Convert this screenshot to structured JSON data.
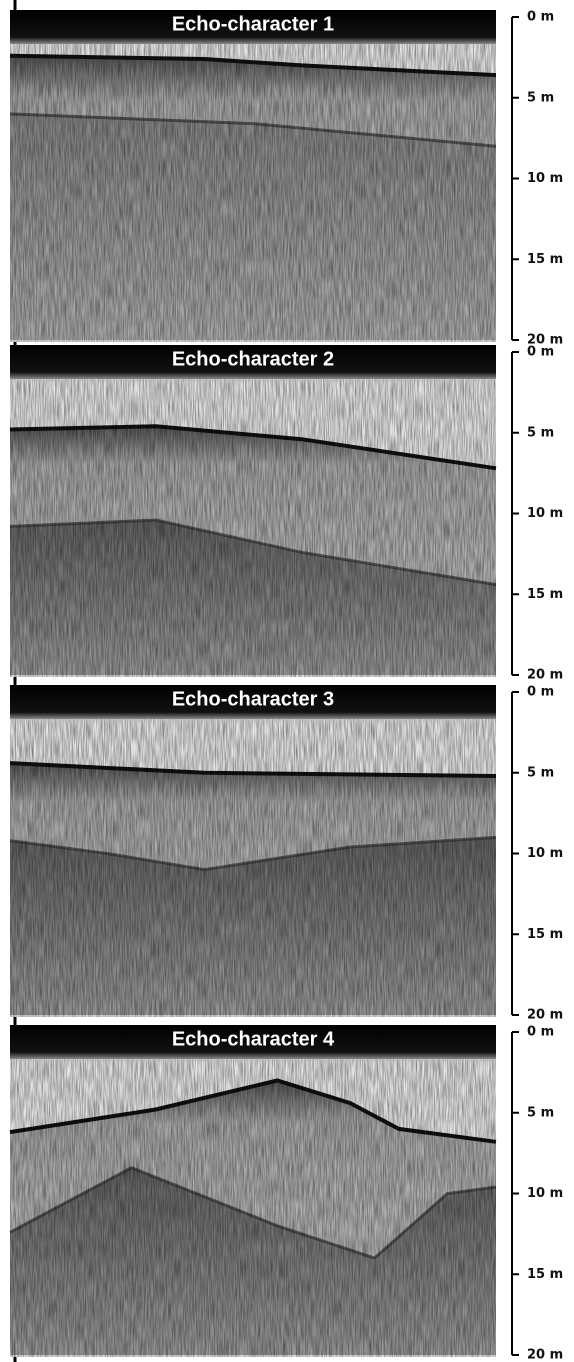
{
  "panels": [
    {
      "title": "Echo-character 1",
      "depth_ticks": [
        {
          "value": 0,
          "label": "0 m"
        },
        {
          "value": 5,
          "label": "5 m"
        },
        {
          "value": 10,
          "label": "10 m"
        },
        {
          "value": 15,
          "label": "15 m"
        },
        {
          "value": 20,
          "label": "20 m"
        }
      ]
    },
    {
      "title": "Echo-character 2",
      "depth_ticks": [
        {
          "value": 0,
          "label": "0 m"
        },
        {
          "value": 5,
          "label": "5 m"
        },
        {
          "value": 10,
          "label": "10 m"
        },
        {
          "value": 15,
          "label": "15 m"
        },
        {
          "value": 20,
          "label": "20 m"
        }
      ]
    },
    {
      "title": "Echo-character 3",
      "depth_ticks": [
        {
          "value": 0,
          "label": "0 m"
        },
        {
          "value": 5,
          "label": "5 m"
        },
        {
          "value": 10,
          "label": "10 m"
        },
        {
          "value": 15,
          "label": "15 m"
        },
        {
          "value": 20,
          "label": "20 m"
        }
      ]
    },
    {
      "title": "Echo-character 4",
      "depth_ticks": [
        {
          "value": 0,
          "label": "0 m"
        },
        {
          "value": 5,
          "label": "5 m"
        },
        {
          "value": 10,
          "label": "10 m"
        },
        {
          "value": 15,
          "label": "15 m"
        },
        {
          "value": 20,
          "label": "20 m"
        }
      ]
    }
  ]
}
